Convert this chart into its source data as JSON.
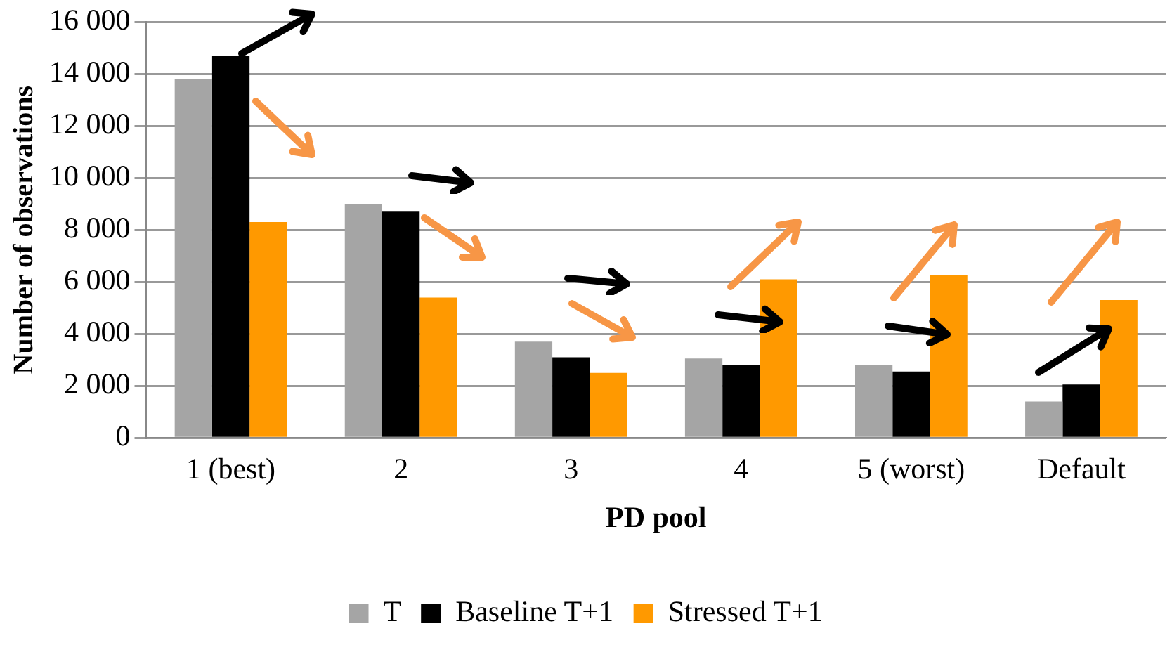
{
  "chart_data": {
    "type": "bar",
    "xlabel": "PD pool",
    "ylabel": "Number of observations",
    "categories": [
      "1 (best)",
      "2",
      "3",
      "4",
      "5 (worst)",
      "Default"
    ],
    "series": [
      {
        "name": "T",
        "color": "#a5a5a5",
        "values": [
          13800,
          9000,
          3700,
          3050,
          2800,
          1400
        ]
      },
      {
        "name": "Baseline T+1",
        "color": "#000000",
        "values": [
          14700,
          8700,
          3100,
          2800,
          2550,
          2050
        ]
      },
      {
        "name": "Stressed T+1",
        "color": "#ff9900",
        "values": [
          8300,
          5400,
          2500,
          6100,
          6250,
          5300
        ]
      }
    ],
    "ylim": [
      0,
      16000
    ],
    "yticks": [
      {
        "value": 0,
        "label": "0"
      },
      {
        "value": 2000,
        "label": "2 000"
      },
      {
        "value": 4000,
        "label": "4 000"
      },
      {
        "value": 6000,
        "label": "6 000"
      },
      {
        "value": 8000,
        "label": "8 000"
      },
      {
        "value": 10000,
        "label": "10 000"
      },
      {
        "value": 12000,
        "label": "12 000"
      },
      {
        "value": 14000,
        "label": "14 000"
      },
      {
        "value": 16000,
        "label": "16 000"
      }
    ],
    "grid": "y",
    "legend": "bottom"
  }
}
